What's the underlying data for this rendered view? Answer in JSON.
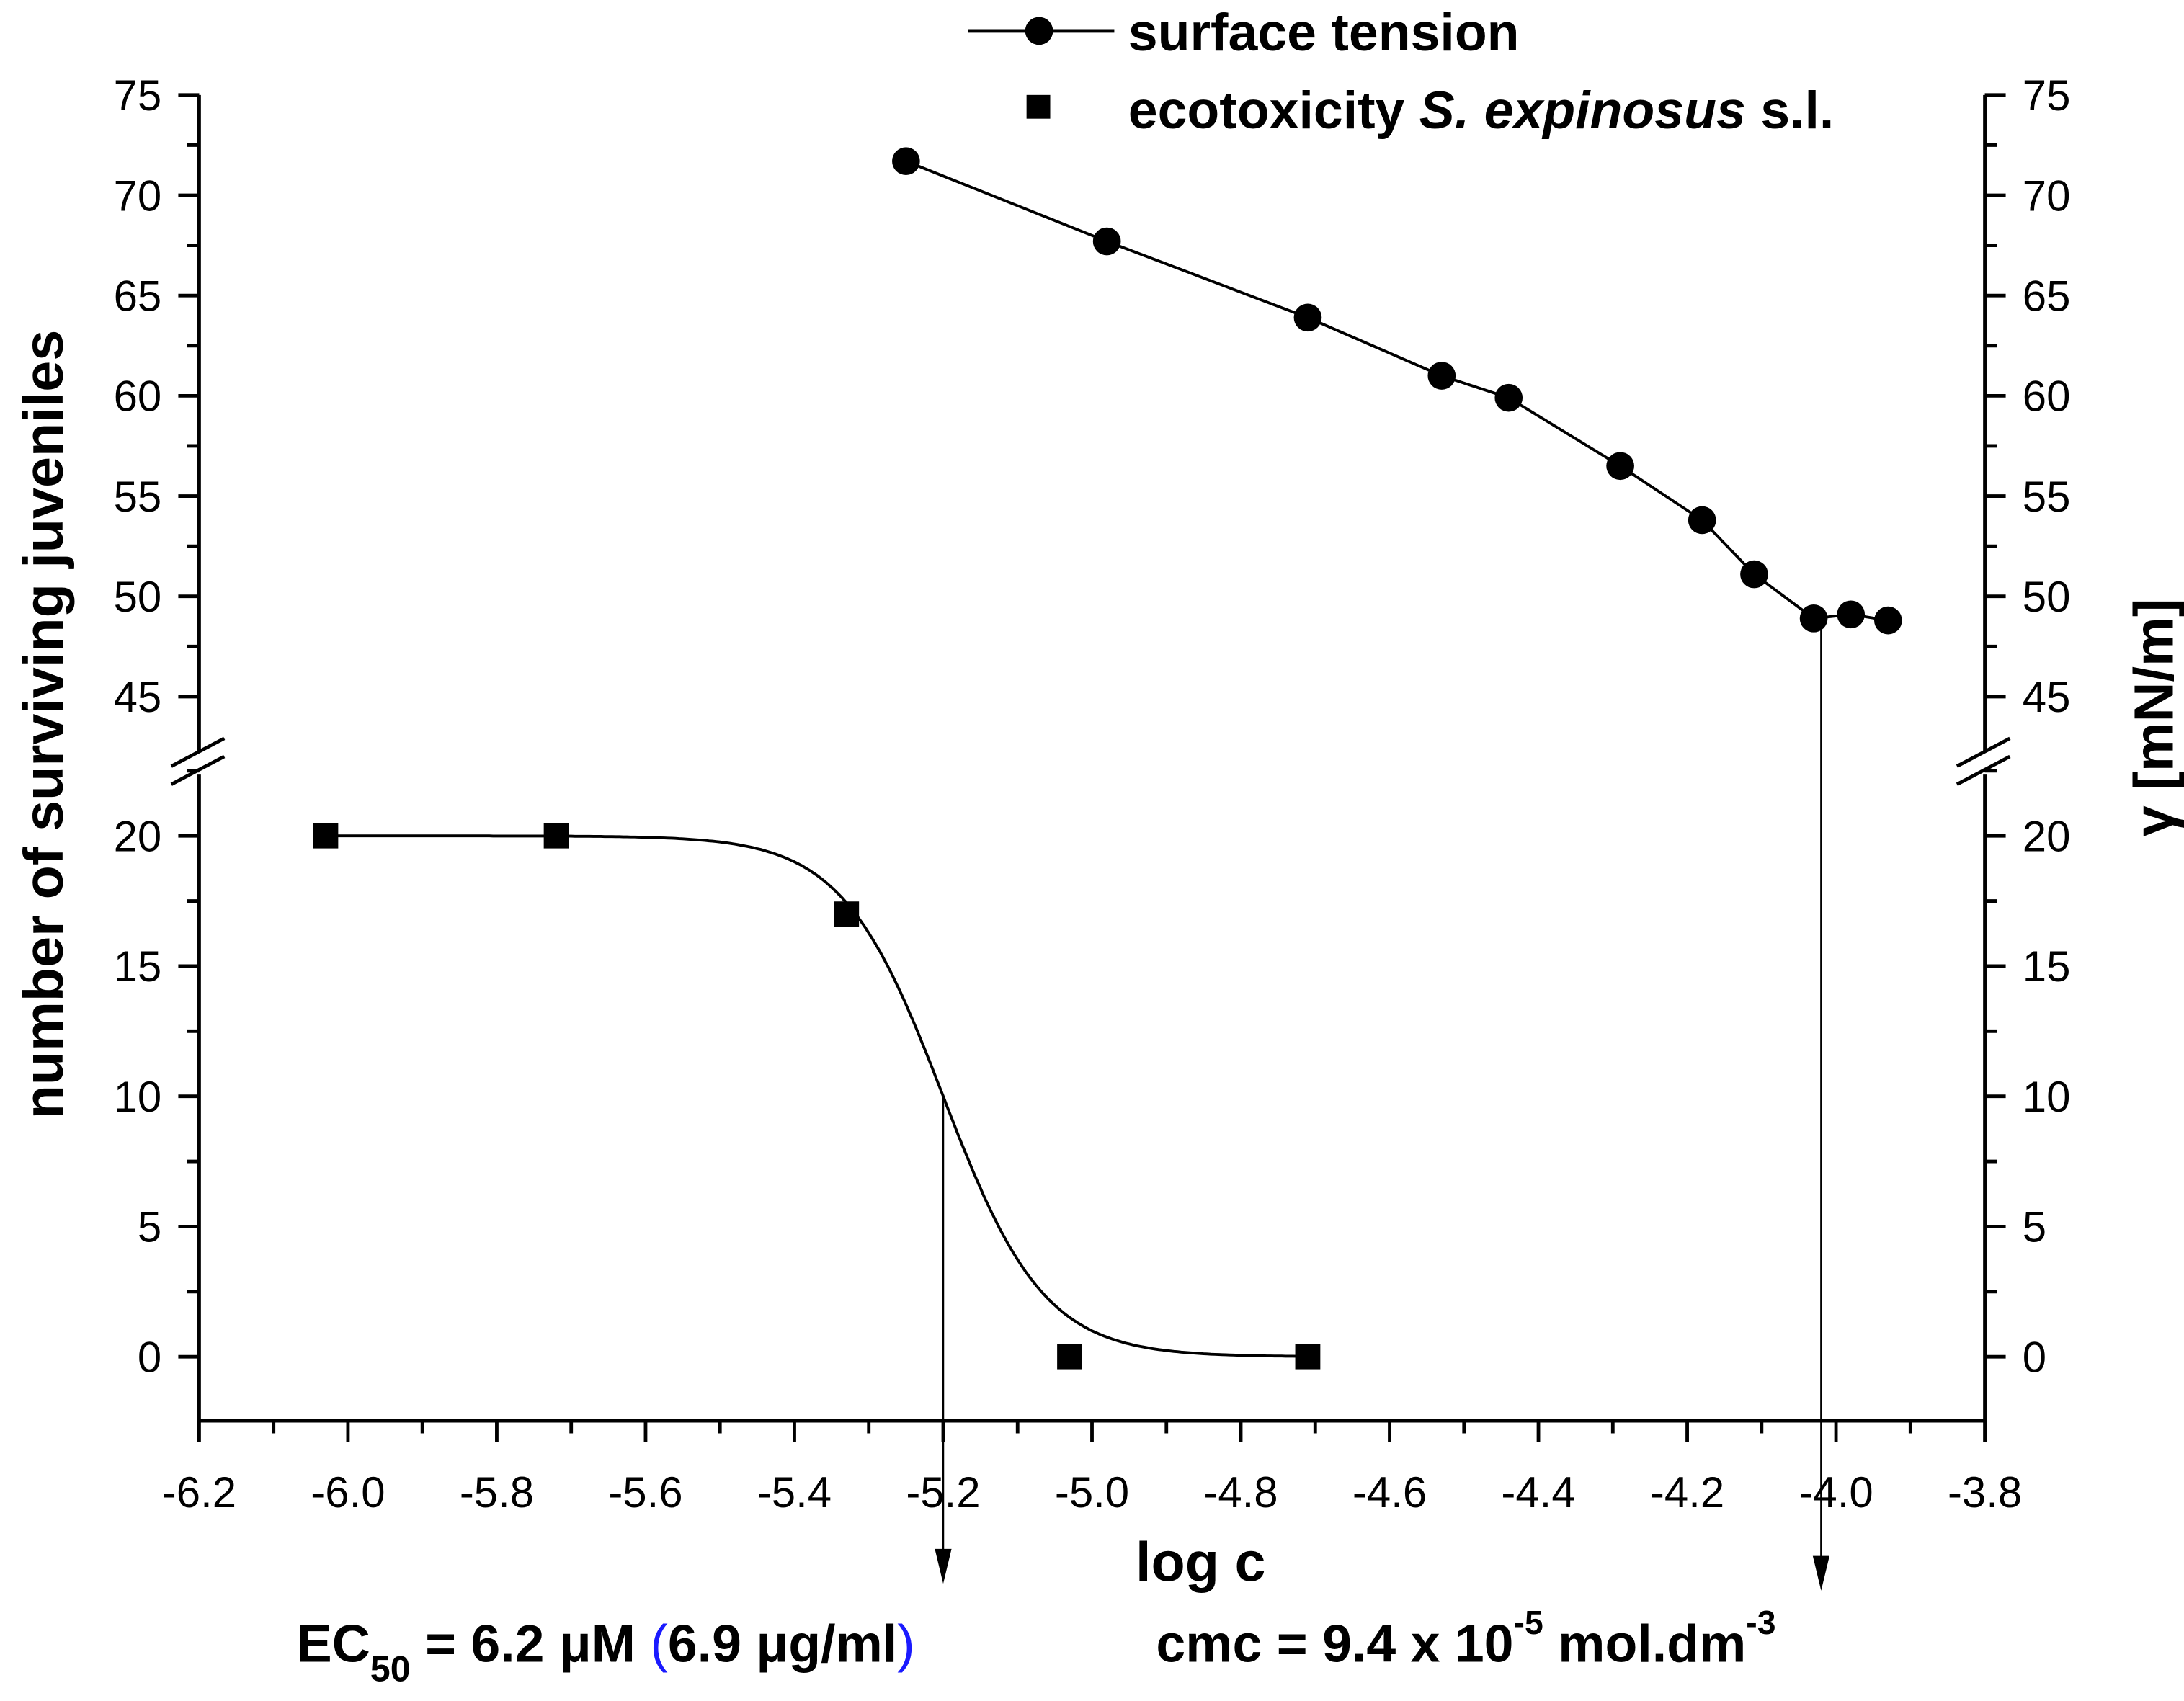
{
  "chart_data": {
    "type": "scatter",
    "xlabel": "log c",
    "ylabel_left": "number of surviving juveniles",
    "ylabel_right": "γ [mN/m]",
    "xlim": [
      -6.2,
      -3.8
    ],
    "ylim_lower": [
      -2.5,
      22
    ],
    "ylim_upper": [
      42,
      75
    ],
    "broken_y_axis": true,
    "grid": false,
    "legend_position": "top",
    "x_ticks": [
      "-6.2",
      "-6.0",
      "-5.8",
      "-5.6",
      "-5.4",
      "-5.2",
      "-5.0",
      "-4.8",
      "-4.6",
      "-4.4",
      "-4.2",
      "-4.0",
      "-3.8"
    ],
    "y_ticks_lower": [
      "0",
      "5",
      "10",
      "15",
      "20"
    ],
    "y_ticks_upper": [
      "45",
      "50",
      "55",
      "60",
      "65",
      "70",
      "75"
    ],
    "series": [
      {
        "name": "surface tension",
        "marker": "circle",
        "line": "connected",
        "axis": "upper",
        "x": [
          -5.25,
          -4.98,
          -4.71,
          -4.53,
          -4.44,
          -4.29,
          -4.18,
          -4.11,
          -4.03,
          -3.98,
          -3.93
        ],
        "y": [
          71.7,
          67.7,
          63.9,
          61.0,
          59.9,
          56.5,
          53.8,
          51.1,
          48.9,
          49.1,
          48.8
        ]
      },
      {
        "name": "ecotoxicity S. expinosus s.l.",
        "name_italic_part": "S. expinosus",
        "marker": "square",
        "line": "sigmoid fit",
        "axis": "lower",
        "x": [
          -6.03,
          -5.72,
          -5.33,
          -5.03,
          -4.71
        ],
        "y": [
          20,
          20,
          17,
          0,
          0
        ],
        "fit": {
          "top": 20,
          "bottom": 0,
          "log_ec50": -5.2,
          "hill_slope": 6.4
        }
      }
    ],
    "annotations": {
      "ec50_x": -5.2,
      "cmc_x": -4.02,
      "ec50": {
        "prefix": "EC",
        "sub": "50",
        "text": " = 6.2 μM ",
        "paren_open": "(",
        "paren_text": "6.9 μg/ml",
        "paren_close": ")"
      },
      "cmc": {
        "text": "cmc = 9.4 x 10",
        "sup1": "-5",
        "text2": " mol.dm",
        "sup2": "-3"
      }
    },
    "colors": {
      "ink": "#000000",
      "paren": "#1a1aff"
    }
  }
}
